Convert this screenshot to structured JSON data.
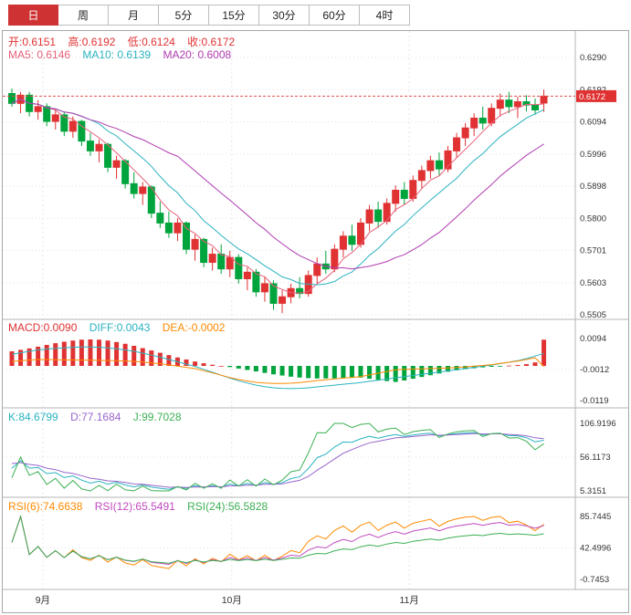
{
  "tabs": [
    {
      "label": "日",
      "active": true
    },
    {
      "label": "周",
      "active": false
    },
    {
      "label": "月",
      "active": false
    },
    {
      "label": "5分",
      "active": false
    },
    {
      "label": "15分",
      "active": false
    },
    {
      "label": "30分",
      "active": false
    },
    {
      "label": "60分",
      "active": false
    },
    {
      "label": "4时",
      "active": false
    }
  ],
  "legends": {
    "ohlc": [
      "开:0.6151",
      "高:0.6192",
      "低:0.6124",
      "收:0.6172"
    ],
    "ma": [
      "MA5: 0.6146",
      "MA10: 0.6139",
      "MA20: 0.6008"
    ],
    "macd": [
      "MACD:0.0090",
      "DIFF:0.0043",
      "DEA:-0.0002"
    ],
    "kdj": [
      "K:84.6799",
      "D:77.1684",
      "J:99.7028"
    ],
    "rsi": [
      "RSI(6):74.6638",
      "RSI(12):65.5491",
      "RSI(24):56.5828"
    ]
  },
  "colors": {
    "up": "#e03232",
    "down": "#00a43c",
    "ma5": "#e8607a",
    "ma10": "#2bb3c0",
    "ma20": "#b03ab0",
    "diff": "#2bb3c0",
    "dea": "#ff8a00",
    "k": "#2bb3c0",
    "d_line": "#9966cc",
    "j": "#3cb054",
    "rsi6": "#ff8a00",
    "rsi12": "#c04ac0",
    "rsi24": "#3cb054",
    "price_line": "#e05050",
    "badge": "#e03232",
    "grid": "#e2e2e2",
    "frame": "#b4b4b4",
    "axis_text": "#333333"
  },
  "chart_data": [
    {
      "type": "candlestick",
      "panel": "price",
      "ylim": [
        0.5505,
        0.629
      ],
      "y_ticks": [
        "0.6290",
        "0.6192",
        "0.6094",
        "0.5996",
        "0.5898",
        "0.5800",
        "0.5701",
        "0.5603",
        "0.5505"
      ],
      "x_ticks": [
        {
          "label": "9月",
          "pos": 0.07
        },
        {
          "label": "10月",
          "pos": 0.4
        },
        {
          "label": "11月",
          "pos": 0.71
        }
      ],
      "current_price": 0.6172,
      "current_price_label": "0.6172",
      "last_ohlc": {
        "open": 0.6151,
        "high": 0.6192,
        "low": 0.6124,
        "close": 0.6172
      },
      "ma_periods": [
        5,
        10,
        20
      ],
      "ma_last_values": {
        "MA5": 0.6146,
        "MA10": 0.6139,
        "MA20": 0.6008
      },
      "ohlc": [
        [
          0.618,
          0.6195,
          0.614,
          0.615
        ],
        [
          0.615,
          0.6185,
          0.612,
          0.6175
        ],
        [
          0.6175,
          0.6185,
          0.611,
          0.6125
        ],
        [
          0.6125,
          0.616,
          0.61,
          0.614
        ],
        [
          0.614,
          0.615,
          0.608,
          0.6095
        ],
        [
          0.6095,
          0.613,
          0.607,
          0.6115
        ],
        [
          0.6115,
          0.6125,
          0.605,
          0.6065
        ],
        [
          0.6065,
          0.611,
          0.6045,
          0.6095
        ],
        [
          0.6095,
          0.61,
          0.602,
          0.6035
        ],
        [
          0.6035,
          0.606,
          0.599,
          0.6005
        ],
        [
          0.6005,
          0.604,
          0.597,
          0.6025
        ],
        [
          0.6025,
          0.603,
          0.594,
          0.5955
        ],
        [
          0.5955,
          0.599,
          0.592,
          0.5975
        ],
        [
          0.5975,
          0.598,
          0.589,
          0.5905
        ],
        [
          0.5905,
          0.594,
          0.586,
          0.5875
        ],
        [
          0.5875,
          0.591,
          0.584,
          0.5895
        ],
        [
          0.5895,
          0.59,
          0.58,
          0.5815
        ],
        [
          0.5815,
          0.585,
          0.577,
          0.5785
        ],
        [
          0.5785,
          0.582,
          0.574,
          0.5755
        ],
        [
          0.5755,
          0.58,
          0.573,
          0.5785
        ],
        [
          0.5785,
          0.579,
          0.569,
          0.5705
        ],
        [
          0.5705,
          0.575,
          0.567,
          0.5735
        ],
        [
          0.5735,
          0.574,
          0.565,
          0.5665
        ],
        [
          0.5665,
          0.571,
          0.564,
          0.569
        ],
        [
          0.569,
          0.572,
          0.563,
          0.5645
        ],
        [
          0.5645,
          0.57,
          0.562,
          0.568
        ],
        [
          0.568,
          0.569,
          0.56,
          0.5615
        ],
        [
          0.5615,
          0.565,
          0.558,
          0.5635
        ],
        [
          0.5635,
          0.5645,
          0.556,
          0.5575
        ],
        [
          0.5575,
          0.562,
          0.5545,
          0.56
        ],
        [
          0.56,
          0.561,
          0.552,
          0.554
        ],
        [
          0.554,
          0.558,
          0.551,
          0.556
        ],
        [
          0.556,
          0.56,
          0.554,
          0.5585
        ],
        [
          0.5585,
          0.562,
          0.5555,
          0.557
        ],
        [
          0.557,
          0.564,
          0.556,
          0.5625
        ],
        [
          0.5625,
          0.568,
          0.56,
          0.566
        ],
        [
          0.566,
          0.57,
          0.563,
          0.5645
        ],
        [
          0.5645,
          0.572,
          0.5635,
          0.5705
        ],
        [
          0.5705,
          0.576,
          0.568,
          0.5745
        ],
        [
          0.5745,
          0.578,
          0.57,
          0.572
        ],
        [
          0.572,
          0.58,
          0.571,
          0.5785
        ],
        [
          0.5785,
          0.584,
          0.576,
          0.5825
        ],
        [
          0.5825,
          0.585,
          0.577,
          0.579
        ],
        [
          0.579,
          0.586,
          0.578,
          0.5845
        ],
        [
          0.5845,
          0.59,
          0.582,
          0.5885
        ],
        [
          0.5885,
          0.591,
          0.584,
          0.586
        ],
        [
          0.586,
          0.593,
          0.585,
          0.5915
        ],
        [
          0.5915,
          0.596,
          0.589,
          0.5945
        ],
        [
          0.5945,
          0.599,
          0.592,
          0.5975
        ],
        [
          0.5975,
          0.6,
          0.593,
          0.595
        ],
        [
          0.595,
          0.602,
          0.594,
          0.6005
        ],
        [
          0.6005,
          0.606,
          0.5985,
          0.6045
        ],
        [
          0.6045,
          0.609,
          0.602,
          0.6075
        ],
        [
          0.6075,
          0.612,
          0.605,
          0.6105
        ],
        [
          0.6105,
          0.614,
          0.607,
          0.609
        ],
        [
          0.609,
          0.615,
          0.608,
          0.6135
        ],
        [
          0.6135,
          0.618,
          0.611,
          0.616
        ],
        [
          0.616,
          0.6185,
          0.612,
          0.614
        ],
        [
          0.614,
          0.617,
          0.6105,
          0.6155
        ],
        [
          0.6155,
          0.6175,
          0.6125,
          0.6145
        ],
        [
          0.6145,
          0.6165,
          0.6115,
          0.613
        ],
        [
          0.6151,
          0.6192,
          0.6124,
          0.6172
        ]
      ]
    },
    {
      "type": "macd",
      "panel": "macd",
      "ylim": [
        -0.0119,
        0.0094
      ],
      "y_ticks": [
        "0.0094",
        "-0.0012",
        "-0.0119"
      ],
      "last_values": {
        "MACD": 0.009,
        "DIFF": 0.0043,
        "DEA": -0.0002
      },
      "diff": [
        0.004,
        0.0045,
        0.005,
        0.0055,
        0.0058,
        0.006,
        0.0062,
        0.0064,
        0.0065,
        0.0065,
        0.0064,
        0.0062,
        0.0059,
        0.0055,
        0.005,
        0.0044,
        0.0037,
        0.003,
        0.0022,
        0.0014,
        0.0006,
        -0.0002,
        -0.0012,
        -0.0022,
        -0.0032,
        -0.0042,
        -0.0051,
        -0.0059,
        -0.0066,
        -0.0071,
        -0.0075,
        -0.0077,
        -0.0078,
        -0.0077,
        -0.0075,
        -0.0072,
        -0.0069,
        -0.0066,
        -0.0063,
        -0.006,
        -0.0057,
        -0.0053,
        -0.0049,
        -0.0045,
        -0.0041,
        -0.0037,
        -0.0033,
        -0.0029,
        -0.0025,
        -0.0021,
        -0.0017,
        -0.0013,
        -0.0009,
        -0.0005,
        -0.0001,
        0.0003,
        0.0008,
        0.0013,
        0.0018,
        0.0025,
        0.0034,
        0.0043
      ],
      "hist": [
        0.005,
        0.0055,
        0.006,
        0.0066,
        0.0072,
        0.0078,
        0.0083,
        0.0087,
        0.009,
        0.0091,
        0.009,
        0.0087,
        0.0082,
        0.0076,
        0.0069,
        0.0061,
        0.0053,
        0.0045,
        0.0037,
        0.0029,
        0.0022,
        0.0015,
        0.0009,
        0.0004,
        0.0,
        -0.0004,
        -0.0009,
        -0.0014,
        -0.0019,
        -0.0024,
        -0.0029,
        -0.0033,
        -0.0037,
        -0.004,
        -0.0042,
        -0.0043,
        -0.0043,
        -0.0043,
        -0.0042,
        -0.0041,
        -0.004,
        -0.0044,
        -0.0048,
        -0.0052,
        -0.0055,
        -0.005,
        -0.0044,
        -0.0038,
        -0.0032,
        -0.0026,
        -0.002,
        -0.0015,
        -0.0011,
        -0.0008,
        -0.0005,
        -0.0003,
        -0.0001,
        0.0001,
        0.0003,
        0.0006,
        0.0012,
        0.009
      ]
    },
    {
      "type": "line",
      "panel": "kdj",
      "indicator": "KDJ",
      "params": [
        9,
        3,
        3
      ],
      "derived_from": "ohlc",
      "ylim": [
        5.3151,
        106.9196
      ],
      "y_ticks": [
        "106.9196",
        "56.1173",
        "5.3151"
      ],
      "last_values": {
        "K": 84.6799,
        "D": 77.1684,
        "J": 99.7028
      }
    },
    {
      "type": "line",
      "panel": "rsi",
      "indicator": "RSI",
      "params": [
        6,
        12,
        24
      ],
      "derived_from": "ohlc",
      "ylim": [
        -0.7453,
        85.7445
      ],
      "y_ticks": [
        "85.7445",
        "42.4996",
        "-0.7453"
      ],
      "last_values": {
        "RSI6": 74.6638,
        "RSI12": 65.5491,
        "RSI24": 56.5828
      }
    }
  ]
}
